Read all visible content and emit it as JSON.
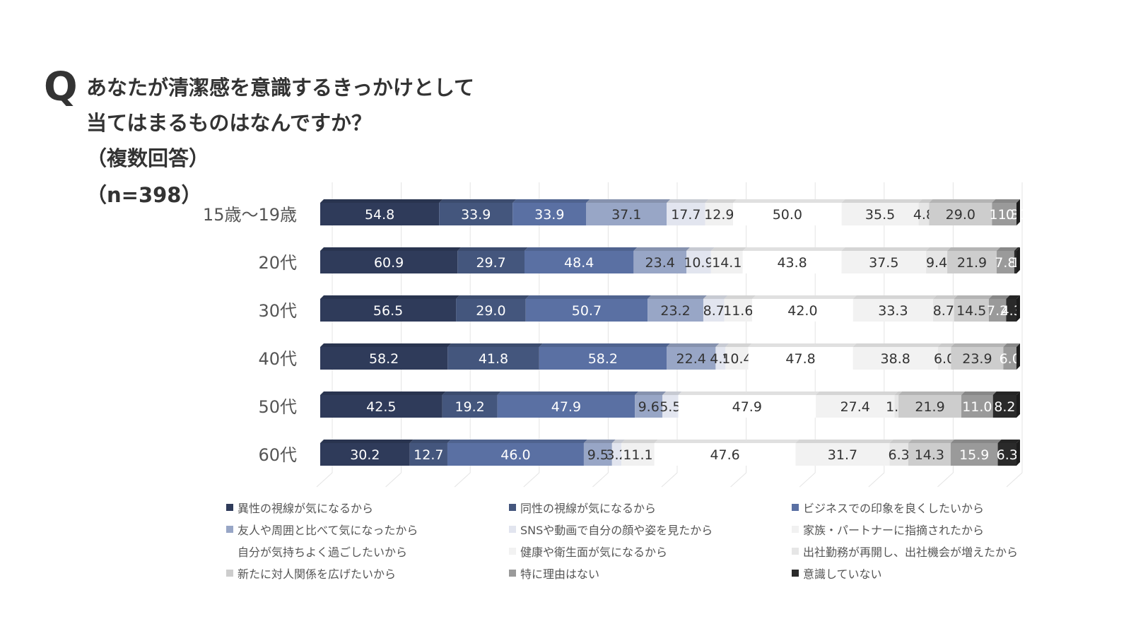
{
  "question_mark": "Q",
  "title": {
    "line1": "あなたが清潔感を意識するきっかけとして",
    "line2": "当てはまるものはなんですか？",
    "line3": "（複数回答）",
    "line4": "（n=398）"
  },
  "chart_data": {
    "type": "bar",
    "orientation": "horizontal-stacked",
    "categories": [
      "15歳〜19歳",
      "20代",
      "30代",
      "40代",
      "50代",
      "60代"
    ],
    "series": [
      {
        "name": "異性の視線が気になるから",
        "color": "#2f3b5a",
        "text_color": "#ffffff",
        "values": [
          "54.8",
          "60.9",
          "56.5",
          "58.2",
          "42.5",
          "30.2"
        ]
      },
      {
        "name": "同性の視線が気になるから",
        "color": "#44567d",
        "text_color": "#ffffff",
        "values": [
          "33.9",
          "29.7",
          "29.0",
          "41.8",
          "19.2",
          "12.7"
        ]
      },
      {
        "name": "ビジネスでの印象を良くしたいから",
        "color": "#5a70a3",
        "text_color": "#ffffff",
        "values": [
          "33.9",
          "48.4",
          "50.7",
          "58.2",
          "47.9",
          "46.0"
        ]
      },
      {
        "name": "友人や周囲と比べて気になったから",
        "color": "#98a6c6",
        "text_color": "#333333",
        "values": [
          "37.1",
          "23.4",
          "23.2",
          "22.4",
          "9.6",
          "9.5"
        ]
      },
      {
        "name": "SNSや動画で自分の顔や姿を見たから",
        "color": "#e2e5ef",
        "text_color": "#333333",
        "values": [
          "17.7",
          "10.9",
          "8.7",
          "4.5",
          "5.5",
          "3.2"
        ]
      },
      {
        "name": "家族・パートナーに指摘されたから",
        "color": "#f1f1f1",
        "text_color": "#333333",
        "values": [
          "12.9",
          "14.1",
          "11.6",
          "10.4",
          "",
          "11.1"
        ]
      },
      {
        "name": "自分が気持ちよく過ごしたいから",
        "color": "#ffffff",
        "text_color": "#333333",
        "values": [
          "50.0",
          "43.8",
          "42.0",
          "47.8",
          "47.9",
          "47.6"
        ]
      },
      {
        "name": "健康や衛生面が気になるから",
        "color": "#f2f2f2",
        "text_color": "#333333",
        "values": [
          "35.5",
          "37.5",
          "33.3",
          "38.8",
          "27.4",
          "31.7"
        ]
      },
      {
        "name": "出社勤務が再開し、出社機会が増えたから",
        "color": "#e6e6e6",
        "text_color": "#333333",
        "values": [
          "4.8",
          "9.4",
          "8.7",
          "6.0",
          "1.4",
          "6.3"
        ]
      },
      {
        "name": "新たに対人関係を広げたいから",
        "color": "#cdcdcd",
        "text_color": "#333333",
        "values": [
          "29.0",
          "21.9",
          "14.5",
          "23.9",
          "21.9",
          "14.3"
        ]
      },
      {
        "name": "特に理由はない",
        "color": "#9a9a9a",
        "text_color": "#ffffff",
        "values": [
          "11.3",
          "7.8",
          "7.2",
          "6.0",
          "11.0",
          "15.9"
        ]
      },
      {
        "name": "意識していない",
        "color": "#2a2a2a",
        "text_color": "#ffffff",
        "values": [
          "0.0",
          "1",
          "4.3",
          "",
          "8.2",
          "6.3"
        ]
      }
    ],
    "title": "あなたが清潔感を意識するきっかけとして当てはまるものはなんですか？（複数回答）（n=398）",
    "xlabel": "",
    "ylabel": "",
    "legend_position": "bottom",
    "grid": true
  }
}
